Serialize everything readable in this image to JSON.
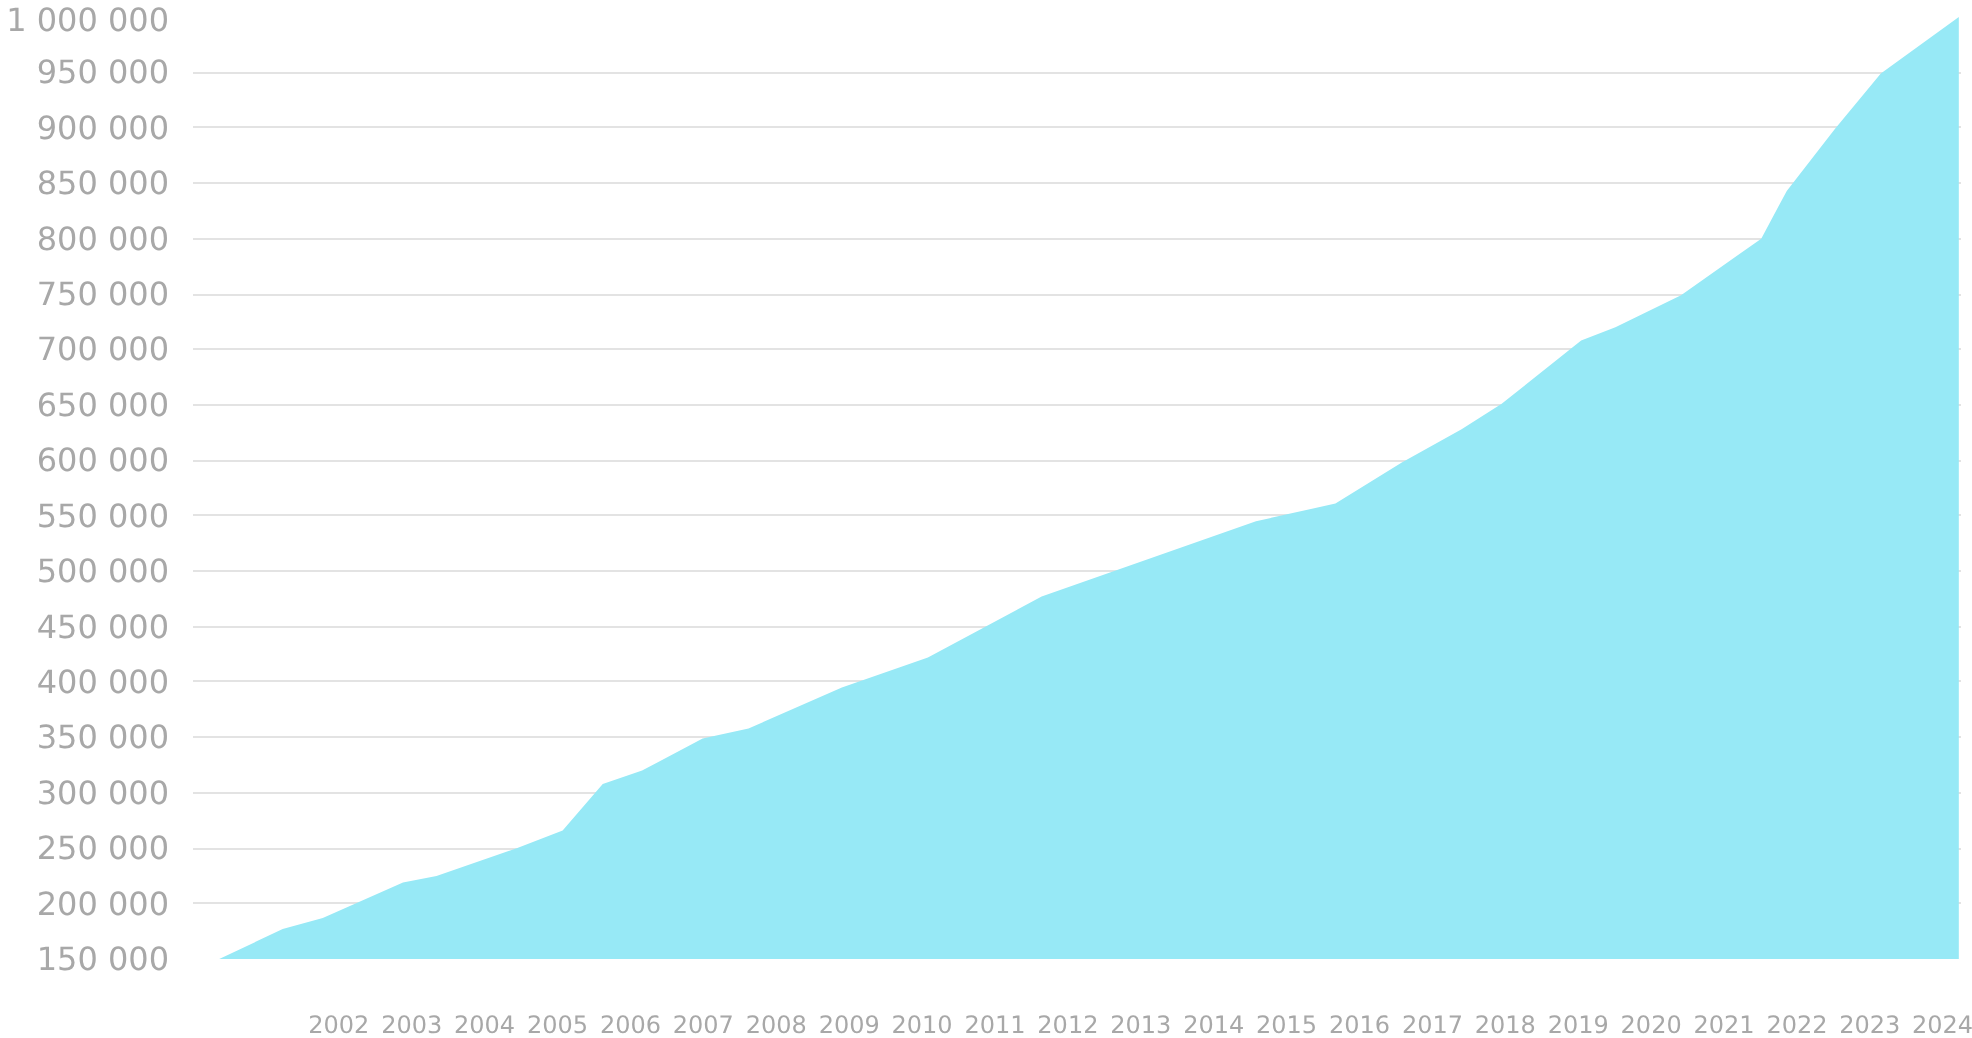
{
  "chart_data": {
    "type": "area",
    "x": [
      2000.36,
      2001.23,
      2001.78,
      2002.88,
      2003.34,
      2004.44,
      2005.07,
      2005.62,
      2006.16,
      2006.99,
      2007.62,
      2008.9,
      2010.08,
      2011.64,
      2014.58,
      2015.67,
      2016.58,
      2017.4,
      2017.95,
      2019.04,
      2019.51,
      2020.41,
      2021.51,
      2021.86,
      2022.52,
      2023.15,
      2024.22
    ],
    "series": [
      {
        "color": "#97e9f6",
        "values": [
          150000,
          177000,
          187000,
          219000,
          225000,
          250000,
          266000,
          308000,
          320000,
          349000,
          358000,
          395000,
          422000,
          477000,
          545000,
          561000,
          598000,
          628000,
          651000,
          708000,
          720000,
          749000,
          800000,
          843000,
          899000,
          949000,
          1000000
        ]
      }
    ],
    "xlim": [
      2000,
      2024.25
    ],
    "ylim": [
      150000,
      1000000
    ],
    "xticks": [
      2002,
      2003,
      2004,
      2005,
      2006,
      2007,
      2008,
      2009,
      2010,
      2011,
      2012,
      2013,
      2014,
      2015,
      2016,
      2017,
      2018,
      2019,
      2020,
      2021,
      2022,
      2023,
      2024
    ],
    "yticks": [
      {
        "value": 150000,
        "label": "150 000"
      },
      {
        "value": 200000,
        "label": "200 000"
      },
      {
        "value": 250000,
        "label": "250 000"
      },
      {
        "value": 300000,
        "label": "300 000"
      },
      {
        "value": 350000,
        "label": "350 000"
      },
      {
        "value": 400000,
        "label": "400 000"
      },
      {
        "value": 450000,
        "label": "450 000"
      },
      {
        "value": 500000,
        "label": "500 000"
      },
      {
        "value": 550000,
        "label": "550 000"
      },
      {
        "value": 600000,
        "label": "600 000"
      },
      {
        "value": 650000,
        "label": "650 000"
      },
      {
        "value": 700000,
        "label": "700 000"
      },
      {
        "value": 750000,
        "label": "750 000"
      },
      {
        "value": 800000,
        "label": "800 000"
      },
      {
        "value": 850000,
        "label": "850 000"
      },
      {
        "value": 900000,
        "label": "900 000"
      },
      {
        "value": 950000,
        "label": "950 000"
      },
      {
        "value": 1000000,
        "label": "1 000 000"
      }
    ],
    "grid": "y"
  }
}
